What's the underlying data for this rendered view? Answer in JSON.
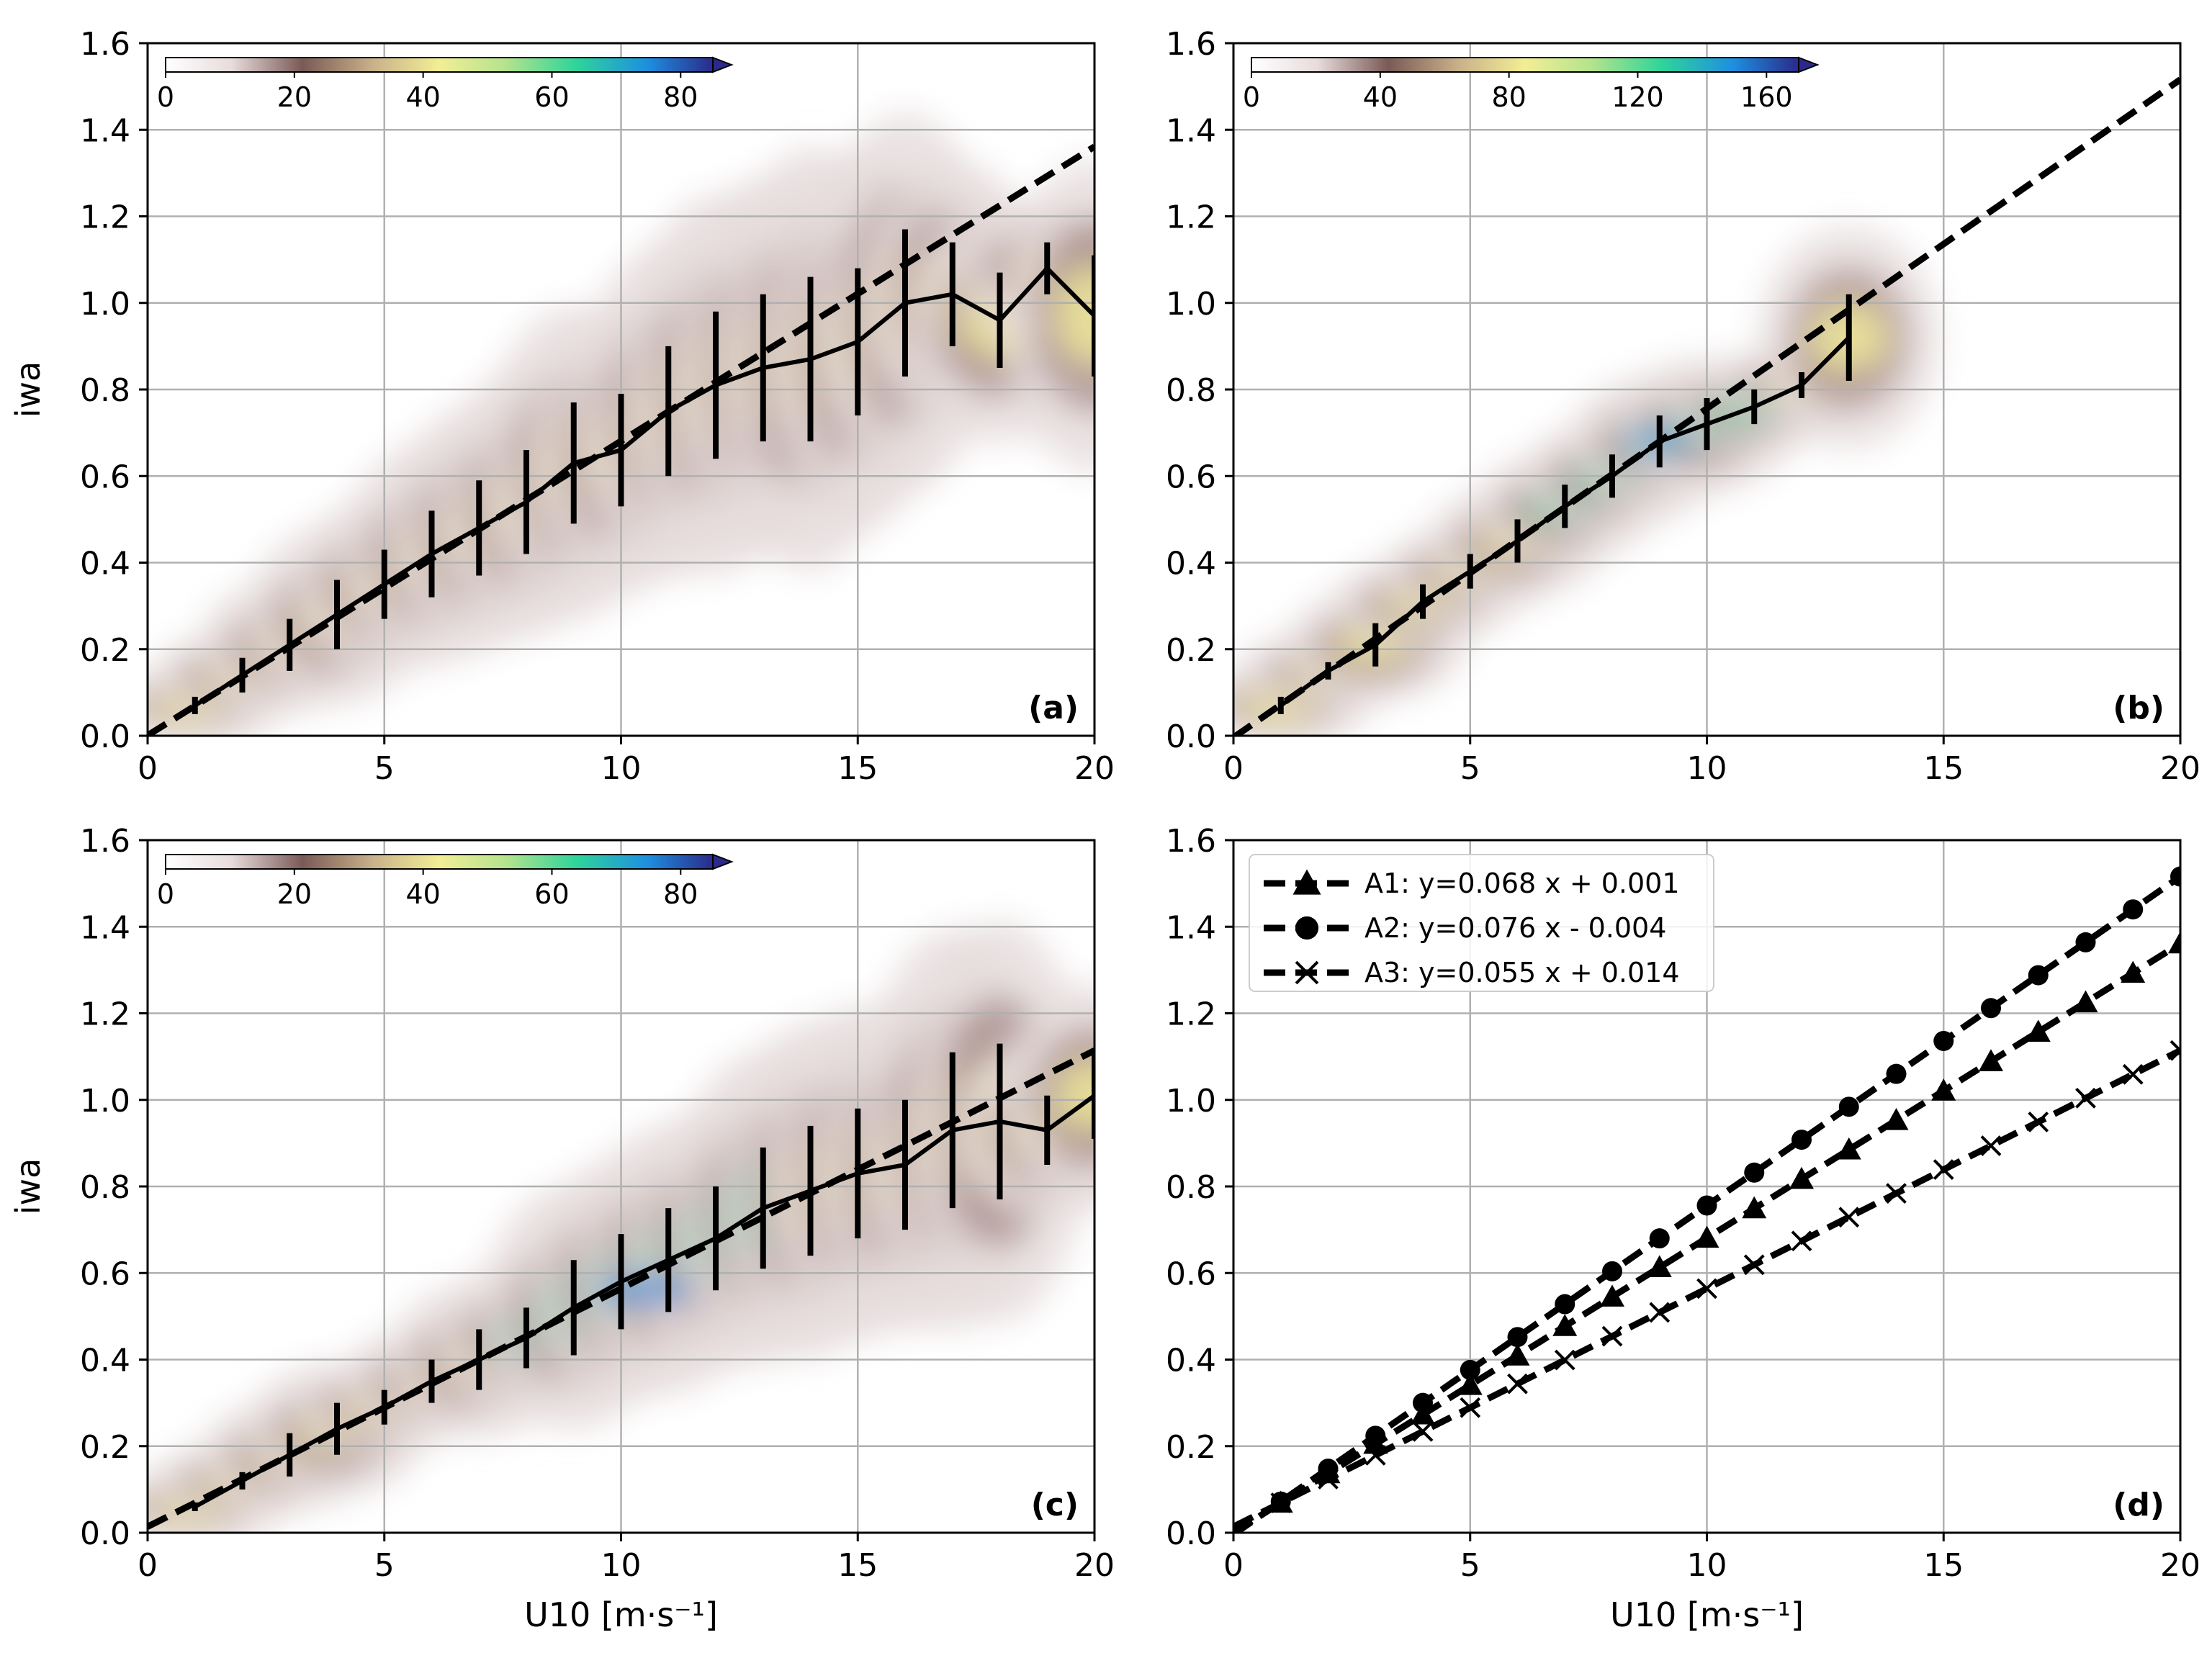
{
  "chart_data": [
    {
      "panel": "a",
      "type": "line",
      "panel_label": "(a)",
      "xlabel": "",
      "ylabel": "iwa",
      "xlim": [
        0,
        20
      ],
      "ylim": [
        0,
        1.6
      ],
      "xticks": [
        "0",
        "5",
        "10",
        "15",
        "20"
      ],
      "yticks": [
        "0.0",
        "0.2",
        "0.4",
        "0.6",
        "0.8",
        "1.0",
        "1.2",
        "1.4",
        "1.6"
      ],
      "grid": true,
      "colorbar": {
        "ticks": [
          "0",
          "20",
          "40",
          "60",
          "80"
        ],
        "max": 85,
        "extend": "max",
        "placement": "top-left"
      },
      "fit_line": {
        "style": "dashed",
        "slope": 0.068,
        "intercept": 0.001
      },
      "binned_mean": {
        "x": [
          1,
          2,
          3,
          4,
          5,
          6,
          7,
          8,
          9,
          10,
          11,
          12,
          13,
          14,
          15,
          16,
          17,
          18,
          19,
          20
        ],
        "y": [
          0.07,
          0.14,
          0.21,
          0.28,
          0.35,
          0.42,
          0.48,
          0.54,
          0.63,
          0.66,
          0.75,
          0.81,
          0.85,
          0.87,
          0.91,
          1.0,
          1.02,
          0.96,
          1.08,
          0.97
        ],
        "err": [
          0.02,
          0.04,
          0.06,
          0.08,
          0.08,
          0.1,
          0.11,
          0.12,
          0.14,
          0.13,
          0.15,
          0.17,
          0.17,
          0.19,
          0.17,
          0.17,
          0.12,
          0.11,
          0.06,
          0.14
        ]
      }
    },
    {
      "panel": "b",
      "type": "line",
      "panel_label": "(b)",
      "xlabel": "",
      "ylabel": "",
      "xlim": [
        0,
        20
      ],
      "ylim": [
        0,
        1.6
      ],
      "xticks": [
        "0",
        "5",
        "10",
        "15",
        "20"
      ],
      "yticks": [
        "0.0",
        "0.2",
        "0.4",
        "0.6",
        "0.8",
        "1.0",
        "1.2",
        "1.4",
        "1.6"
      ],
      "grid": true,
      "colorbar": {
        "ticks": [
          "0",
          "40",
          "80",
          "120",
          "160"
        ],
        "max": 170,
        "extend": "max",
        "placement": "top-left"
      },
      "fit_line": {
        "style": "dashed",
        "slope": 0.076,
        "intercept": -0.004
      },
      "binned_mean": {
        "x": [
          1,
          2,
          3,
          4,
          5,
          6,
          7,
          8,
          9,
          10,
          11,
          12,
          13
        ],
        "y": [
          0.07,
          0.15,
          0.21,
          0.31,
          0.38,
          0.45,
          0.53,
          0.6,
          0.68,
          0.72,
          0.76,
          0.81,
          0.92
        ],
        "err": [
          0.02,
          0.02,
          0.05,
          0.04,
          0.04,
          0.05,
          0.05,
          0.05,
          0.06,
          0.06,
          0.04,
          0.03,
          0.1
        ]
      }
    },
    {
      "panel": "c",
      "type": "line",
      "panel_label": "(c)",
      "xlabel": "U10 [m·s⁻¹]",
      "ylabel": "iwa",
      "xlim": [
        0,
        20
      ],
      "ylim": [
        0,
        1.6
      ],
      "xticks": [
        "0",
        "5",
        "10",
        "15",
        "20"
      ],
      "yticks": [
        "0.0",
        "0.2",
        "0.4",
        "0.6",
        "0.8",
        "1.0",
        "1.2",
        "1.4",
        "1.6"
      ],
      "grid": true,
      "colorbar": {
        "ticks": [
          "0",
          "20",
          "40",
          "60",
          "80"
        ],
        "max": 85,
        "extend": "max",
        "placement": "top-left"
      },
      "fit_line": {
        "style": "dashed",
        "slope": 0.055,
        "intercept": 0.014
      },
      "binned_mean": {
        "x": [
          1,
          2,
          3,
          4,
          5,
          6,
          7,
          8,
          9,
          10,
          11,
          12,
          13,
          14,
          15,
          16,
          17,
          18,
          19,
          20
        ],
        "y": [
          0.06,
          0.12,
          0.18,
          0.24,
          0.29,
          0.35,
          0.4,
          0.45,
          0.52,
          0.58,
          0.63,
          0.68,
          0.75,
          0.79,
          0.83,
          0.85,
          0.93,
          0.95,
          0.93,
          1.01
        ],
        "err": [
          0.01,
          0.02,
          0.05,
          0.06,
          0.04,
          0.05,
          0.07,
          0.07,
          0.11,
          0.11,
          0.12,
          0.12,
          0.14,
          0.15,
          0.15,
          0.15,
          0.18,
          0.18,
          0.08,
          0.1
        ]
      }
    },
    {
      "panel": "d",
      "type": "line",
      "panel_label": "(d)",
      "xlabel": "U10 [m·s⁻¹]",
      "ylabel": "",
      "xlim": [
        0,
        20
      ],
      "ylim": [
        0,
        1.6
      ],
      "xticks": [
        "0",
        "5",
        "10",
        "15",
        "20"
      ],
      "yticks": [
        "0.0",
        "0.2",
        "0.4",
        "0.6",
        "0.8",
        "1.0",
        "1.2",
        "1.4",
        "1.6"
      ],
      "grid": true,
      "legend": "top-left",
      "series": [
        {
          "name": "A1: y=0.068 x + 0.001",
          "marker": "triangle",
          "slope": 0.068,
          "intercept": 0.001,
          "x": [
            1,
            2,
            3,
            4,
            5,
            6,
            7,
            8,
            9,
            10,
            11,
            12,
            13,
            14,
            15,
            16,
            17,
            18,
            19,
            20
          ]
        },
        {
          "name": "A2: y=0.076 x - 0.004",
          "marker": "circle",
          "slope": 0.076,
          "intercept": -0.004,
          "x": [
            1,
            2,
            3,
            4,
            5,
            6,
            7,
            8,
            9,
            10,
            11,
            12,
            13,
            14,
            15,
            16,
            17,
            18,
            19,
            20
          ]
        },
        {
          "name": "A3: y=0.055 x + 0.014",
          "marker": "x",
          "slope": 0.055,
          "intercept": 0.014,
          "x": [
            1,
            2,
            3,
            4,
            5,
            6,
            7,
            8,
            9,
            10,
            11,
            12,
            13,
            14,
            15,
            16,
            17,
            18,
            19,
            20
          ]
        }
      ]
    }
  ]
}
